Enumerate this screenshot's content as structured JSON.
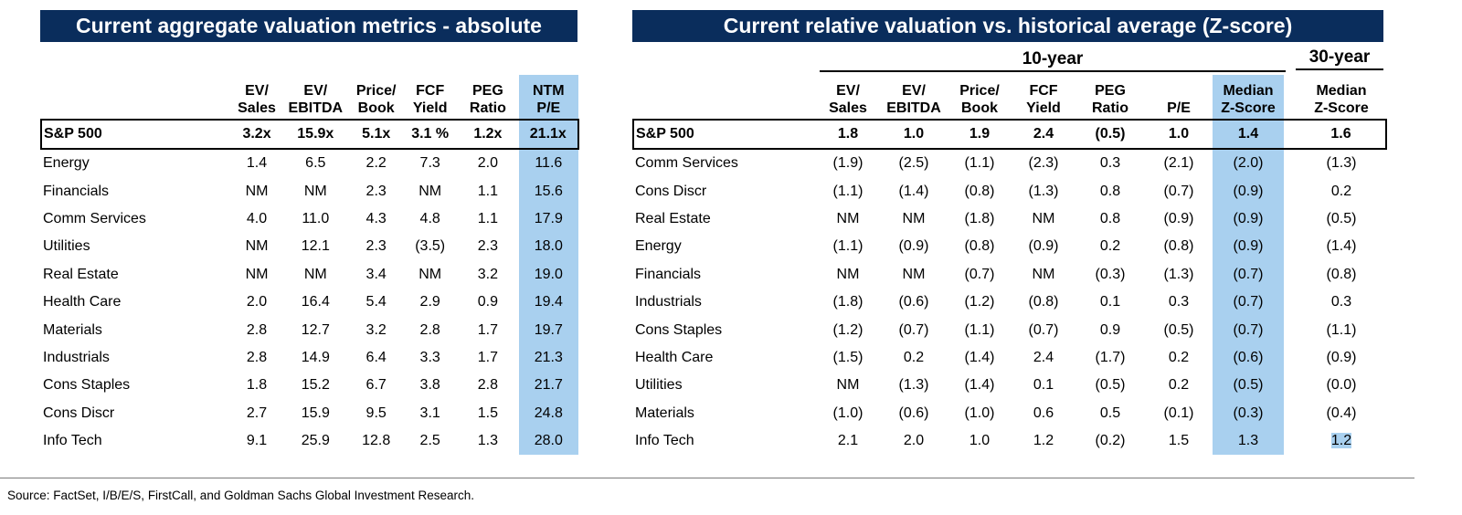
{
  "left": {
    "title": "Current aggregate valuation metrics - absolute",
    "headers": [
      {
        "l1": "EV/",
        "l2": "Sales"
      },
      {
        "l1": "EV/",
        "l2": "EBITDA"
      },
      {
        "l1": "Price/",
        "l2": "Book"
      },
      {
        "l1": "FCF",
        "l2": "Yield"
      },
      {
        "l1": "PEG",
        "l2": "Ratio"
      },
      {
        "l1": "NTM",
        "l2": "P/E"
      }
    ],
    "total": {
      "name": "S&P 500",
      "values": [
        "3.2x",
        "15.9x",
        "5.1x",
        "3.1 %",
        "1.2x",
        "21.1x"
      ]
    },
    "rows": [
      {
        "name": "Energy",
        "values": [
          "1.4",
          "6.5",
          "2.2",
          "7.3",
          "2.0",
          "11.6"
        ]
      },
      {
        "name": "Financials",
        "values": [
          "NM",
          "NM",
          "2.3",
          "NM",
          "1.1",
          "15.6"
        ]
      },
      {
        "name": "Comm Services",
        "values": [
          "4.0",
          "11.0",
          "4.3",
          "4.8",
          "1.1",
          "17.9"
        ]
      },
      {
        "name": "Utilities",
        "values": [
          "NM",
          "12.1",
          "2.3",
          "(3.5)",
          "2.3",
          "18.0"
        ]
      },
      {
        "name": "Real Estate",
        "values": [
          "NM",
          "NM",
          "3.4",
          "NM",
          "3.2",
          "19.0"
        ]
      },
      {
        "name": "Health Care",
        "values": [
          "2.0",
          "16.4",
          "5.4",
          "2.9",
          "0.9",
          "19.4"
        ]
      },
      {
        "name": "Materials",
        "values": [
          "2.8",
          "12.7",
          "3.2",
          "2.8",
          "1.7",
          "19.7"
        ]
      },
      {
        "name": "Industrials",
        "values": [
          "2.8",
          "14.9",
          "6.4",
          "3.3",
          "1.7",
          "21.3"
        ]
      },
      {
        "name": "Cons Staples",
        "values": [
          "1.8",
          "15.2",
          "6.7",
          "3.8",
          "2.8",
          "21.7"
        ]
      },
      {
        "name": "Cons Discr",
        "values": [
          "2.7",
          "15.9",
          "9.5",
          "3.1",
          "1.5",
          "24.8"
        ]
      },
      {
        "name": "Info Tech",
        "values": [
          "9.1",
          "25.9",
          "12.8",
          "2.5",
          "1.3",
          "28.0"
        ]
      }
    ]
  },
  "right": {
    "title": "Current relative valuation vs. historical average (Z-score)",
    "group_10yr": "10-year",
    "group_30yr": "30-year",
    "headers": [
      {
        "l1": "EV/",
        "l2": "Sales"
      },
      {
        "l1": "EV/",
        "l2": "EBITDA"
      },
      {
        "l1": "Price/",
        "l2": "Book"
      },
      {
        "l1": "FCF",
        "l2": "Yield"
      },
      {
        "l1": "PEG",
        "l2": "Ratio"
      },
      {
        "l1": "",
        "l2": "P/E"
      },
      {
        "l1": "Median",
        "l2": "Z-Score"
      },
      {
        "l1": "Median",
        "l2": "Z-Score"
      }
    ],
    "total": {
      "name": "S&P 500",
      "values": [
        "1.8",
        "1.0",
        "1.9",
        "2.4",
        "(0.5)",
        "1.0",
        "1.4",
        "1.6"
      ]
    },
    "rows": [
      {
        "name": "Comm Services",
        "values": [
          "(1.9)",
          "(2.5)",
          "(1.1)",
          "(2.3)",
          "0.3",
          "(2.1)",
          "(2.0)",
          "(1.3)"
        ]
      },
      {
        "name": "Cons Discr",
        "values": [
          "(1.1)",
          "(1.4)",
          "(0.8)",
          "(1.3)",
          "0.8",
          "(0.7)",
          "(0.9)",
          "0.2"
        ]
      },
      {
        "name": "Real Estate",
        "values": [
          "NM",
          "NM",
          "(1.8)",
          "NM",
          "0.8",
          "(0.9)",
          "(0.9)",
          "(0.5)"
        ]
      },
      {
        "name": "Energy",
        "values": [
          "(1.1)",
          "(0.9)",
          "(0.8)",
          "(0.9)",
          "0.2",
          "(0.8)",
          "(0.9)",
          "(1.4)"
        ]
      },
      {
        "name": "Financials",
        "values": [
          "NM",
          "NM",
          "(0.7)",
          "NM",
          "(0.3)",
          "(1.3)",
          "(0.7)",
          "(0.8)"
        ]
      },
      {
        "name": "Industrials",
        "values": [
          "(1.8)",
          "(0.6)",
          "(1.2)",
          "(0.8)",
          "0.1",
          "0.3",
          "(0.7)",
          "0.3"
        ]
      },
      {
        "name": "Cons Staples",
        "values": [
          "(1.2)",
          "(0.7)",
          "(1.1)",
          "(0.7)",
          "0.9",
          "(0.5)",
          "(0.7)",
          "(1.1)"
        ]
      },
      {
        "name": "Health Care",
        "values": [
          "(1.5)",
          "0.2",
          "(1.4)",
          "2.4",
          "(1.7)",
          "0.2",
          "(0.6)",
          "(0.9)"
        ]
      },
      {
        "name": "Utilities",
        "values": [
          "NM",
          "(1.3)",
          "(1.4)",
          "0.1",
          "(0.5)",
          "0.2",
          "(0.5)",
          "(0.0)"
        ]
      },
      {
        "name": "Materials",
        "values": [
          "(1.0)",
          "(0.6)",
          "(1.0)",
          "0.6",
          "0.5",
          "(0.1)",
          "(0.3)",
          "(0.4)"
        ]
      },
      {
        "name": "Info Tech",
        "values": [
          "2.1",
          "2.0",
          "1.0",
          "1.2",
          "(0.2)",
          "1.5",
          "1.3",
          "1.2"
        ]
      }
    ]
  },
  "colors": {
    "banner": "#0a2d5c",
    "highlight": "#a9d0ef"
  },
  "source": "Source: FactSet, I/B/E/S, FirstCall, and Goldman Sachs Global Investment Research."
}
